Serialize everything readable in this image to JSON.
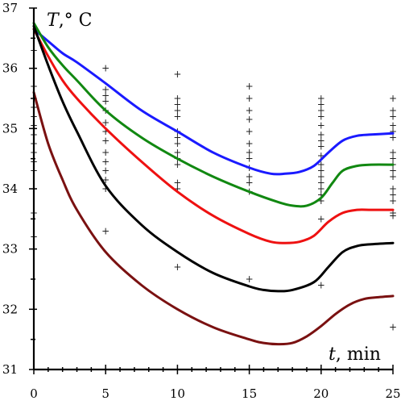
{
  "chart_data": {
    "type": "line",
    "title": "",
    "xlabel": "t, min",
    "ylabel": "T,° C",
    "xlabel_var": "t",
    "xlabel_unit": ", min",
    "ylabel_var": "T",
    "ylabel_unit": ",° C",
    "xlim": [
      0,
      25
    ],
    "ylim": [
      31,
      37
    ],
    "x_ticks": [
      0,
      5,
      10,
      15,
      20,
      25
    ],
    "y_ticks": [
      31,
      32,
      33,
      34,
      35,
      36,
      37
    ],
    "grid": false,
    "legend": "none",
    "series": [
      {
        "color": "#1a1aff",
        "x": [
          0,
          1,
          2,
          3,
          5,
          7.5,
          10,
          12.5,
          15,
          16.5,
          17.5,
          18.5,
          19.5,
          20.5,
          21.5,
          22.5,
          23.5,
          25
        ],
        "y": [
          36.65,
          36.45,
          36.25,
          36.1,
          35.75,
          35.3,
          34.95,
          34.6,
          34.35,
          34.25,
          34.25,
          34.28,
          34.38,
          34.6,
          34.8,
          34.88,
          34.9,
          34.92
        ]
      },
      {
        "color": "#118811",
        "x": [
          0,
          1,
          2,
          3,
          5,
          7.5,
          10,
          12.5,
          15,
          17,
          18,
          19,
          20,
          20.8,
          21.5,
          22.5,
          23.5,
          25
        ],
        "y": [
          36.75,
          36.35,
          36.05,
          35.8,
          35.3,
          34.85,
          34.5,
          34.2,
          33.95,
          33.78,
          33.72,
          33.72,
          33.85,
          34.1,
          34.3,
          34.38,
          34.4,
          34.4
        ]
      },
      {
        "color": "#ee1111",
        "x": [
          0,
          1,
          2,
          3,
          5,
          7.5,
          10,
          12.5,
          15,
          16.5,
          17.5,
          18.5,
          19.5,
          20.5,
          21.5,
          22.5,
          23.5,
          25
        ],
        "y": [
          36.65,
          36.2,
          35.8,
          35.5,
          35.0,
          34.45,
          33.95,
          33.55,
          33.25,
          33.12,
          33.1,
          33.12,
          33.22,
          33.45,
          33.6,
          33.65,
          33.65,
          33.65
        ]
      },
      {
        "color": "#000000",
        "x": [
          0,
          1,
          2,
          3,
          5,
          7.5,
          10,
          12.5,
          15,
          16,
          17,
          18,
          19.5,
          20.5,
          21.5,
          22.5,
          23.5,
          25
        ],
        "y": [
          36.7,
          36.05,
          35.45,
          34.95,
          34.05,
          33.4,
          32.95,
          32.6,
          32.38,
          32.32,
          32.3,
          32.32,
          32.45,
          32.7,
          32.95,
          33.05,
          33.08,
          33.1
        ]
      },
      {
        "color": "#7a1111",
        "x": [
          0,
          1,
          2,
          3,
          5,
          7.5,
          10,
          12.5,
          15,
          16,
          17,
          18,
          19,
          20,
          21,
          22,
          23,
          24,
          25
        ],
        "y": [
          35.6,
          34.75,
          34.15,
          33.65,
          32.95,
          32.4,
          32.0,
          31.7,
          31.5,
          31.44,
          31.42,
          31.44,
          31.55,
          31.72,
          31.92,
          32.08,
          32.17,
          32.2,
          32.22
        ]
      }
    ],
    "observations": [
      {
        "x": 0,
        "y": [
          36.3,
          35.7,
          35.5,
          35.35,
          35.2,
          35.05,
          34.9,
          34.75,
          34.6,
          34.45,
          34.3,
          33.6,
          33.2
        ]
      },
      {
        "x": 5,
        "y": [
          36.0,
          35.65,
          35.55,
          35.45,
          35.3,
          35.1,
          34.95,
          34.8,
          34.6,
          34.45,
          34.3,
          34.15,
          34.0,
          33.3
        ]
      },
      {
        "x": 10,
        "y": [
          35.9,
          35.5,
          35.4,
          35.3,
          35.2,
          34.95,
          34.85,
          34.75,
          34.6,
          34.5,
          34.4,
          34.1,
          34.0,
          32.7
        ]
      },
      {
        "x": 15,
        "y": [
          35.7,
          35.5,
          35.3,
          35.15,
          34.95,
          34.75,
          34.6,
          34.5,
          34.35,
          34.2,
          34.1,
          33.95,
          32.5
        ]
      },
      {
        "x": 20,
        "y": [
          35.5,
          35.4,
          35.3,
          35.2,
          35.05,
          34.9,
          34.8,
          34.7,
          34.55,
          34.4,
          34.3,
          34.2,
          34.1,
          34.0,
          33.9,
          33.8,
          33.5,
          32.4
        ]
      },
      {
        "x": 25,
        "y": [
          35.5,
          35.3,
          35.2,
          35.05,
          34.95,
          34.85,
          34.6,
          34.5,
          34.4,
          34.3,
          34.2,
          34.0,
          33.9,
          33.8,
          33.6,
          33.55,
          31.7
        ]
      }
    ]
  }
}
